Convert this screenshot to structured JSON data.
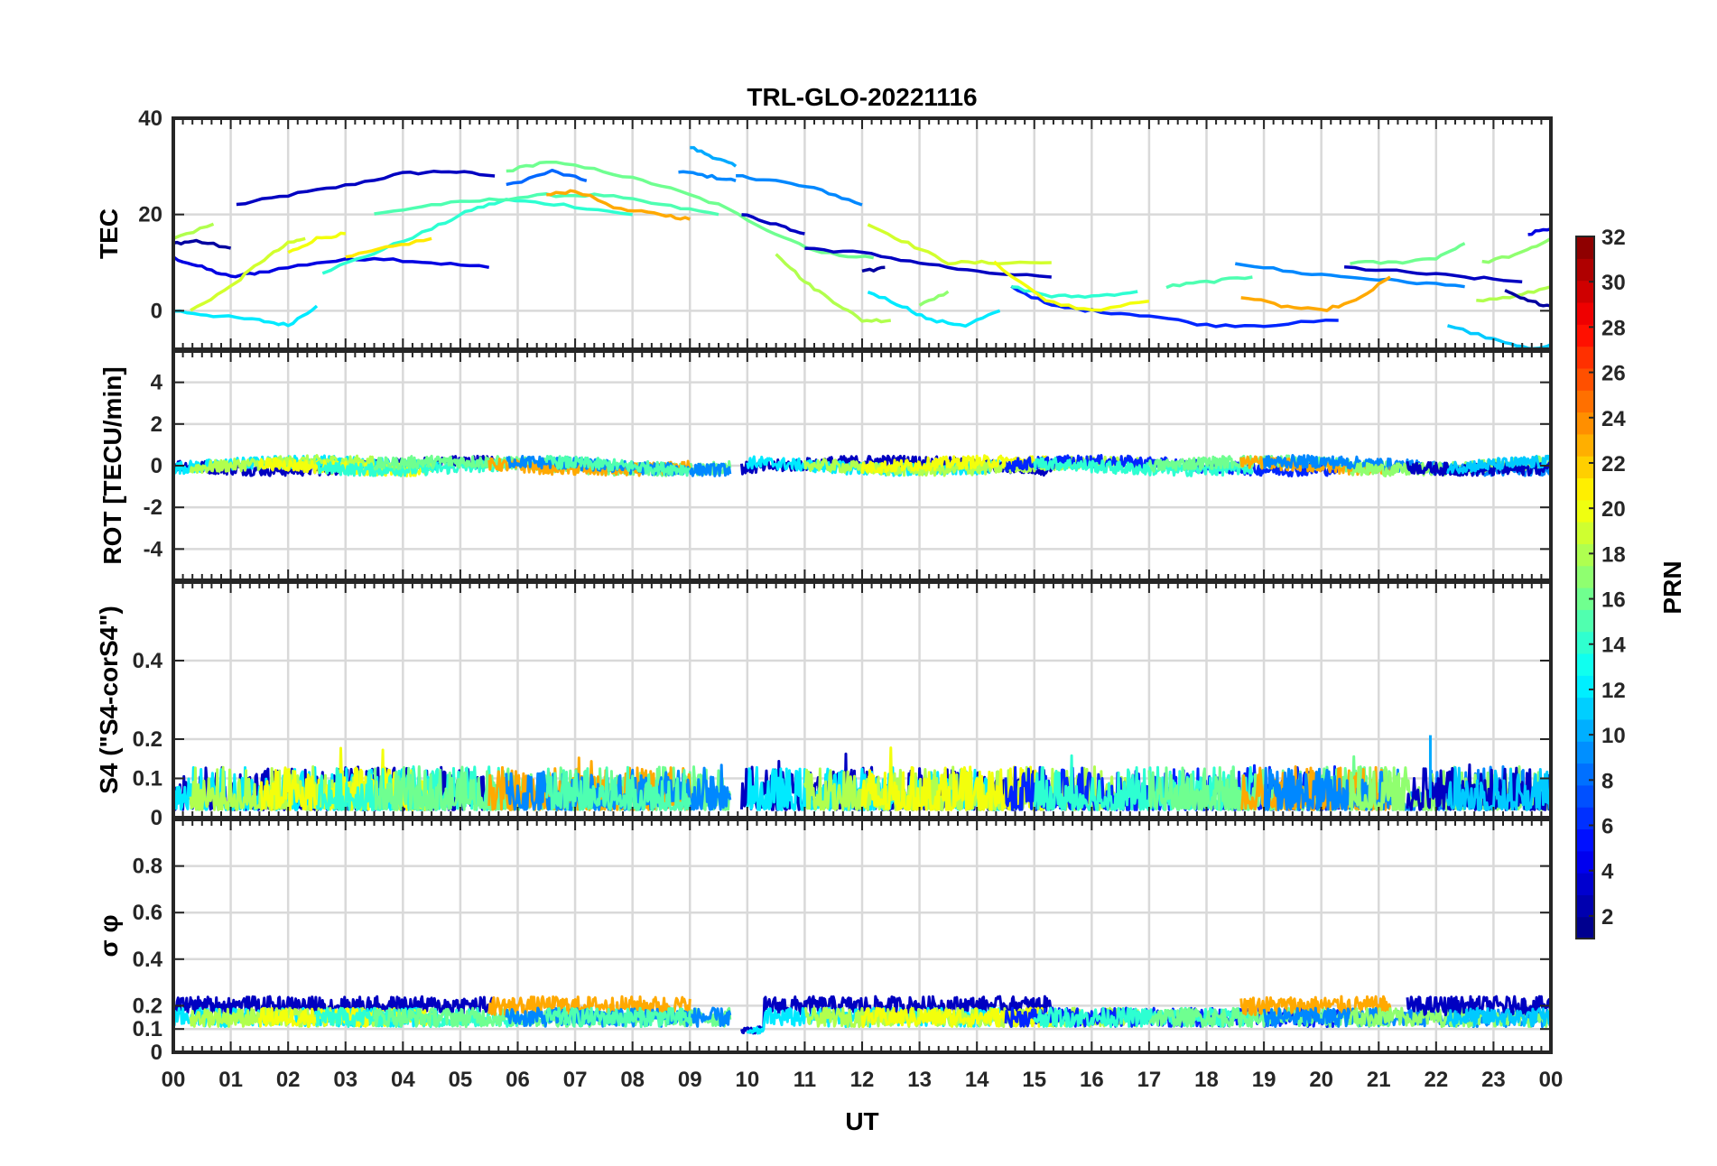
{
  "figure": {
    "title": "TRL-GLO-20221116",
    "xlabel": "UT",
    "colorbar_label": "PRN"
  },
  "chart_data": {
    "type": "line",
    "title": "TRL-GLO-20221116",
    "xlabel": "UT",
    "x_unit": "hours UT",
    "xlim": [
      0,
      24
    ],
    "x_ticks": [
      0,
      1,
      2,
      3,
      4,
      5,
      6,
      7,
      8,
      9,
      10,
      11,
      12,
      13,
      14,
      15,
      16,
      17,
      18,
      19,
      20,
      21,
      22,
      23,
      24
    ],
    "x_tick_labels": [
      "00",
      "01",
      "02",
      "03",
      "04",
      "05",
      "06",
      "07",
      "08",
      "09",
      "10",
      "11",
      "12",
      "13",
      "14",
      "15",
      "16",
      "17",
      "18",
      "19",
      "20",
      "21",
      "22",
      "23",
      "00"
    ],
    "panels": [
      {
        "name": "tec",
        "ylabel": "TEC",
        "ylim": [
          -8,
          40
        ],
        "y_ticks": [
          0,
          20,
          40
        ],
        "y_tick_labels": [
          "0",
          "20",
          "40"
        ],
        "series": [
          {
            "prn": 3,
            "x": [
              1.1,
              2.0,
              3.0,
              4.0,
              4.8,
              5.6
            ],
            "y": [
              22,
              24,
              26,
              28.5,
              29,
              28
            ]
          },
          {
            "prn": 4,
            "x": [
              0.0,
              0.5,
              1.0,
              1.5,
              2.5,
              3.5,
              4.5,
              5.5
            ],
            "y": [
              11,
              9,
              7,
              8,
              10,
              11,
              10,
              9
            ]
          },
          {
            "prn": 2,
            "x": [
              0.0,
              0.4,
              1.0
            ],
            "y": [
              14,
              14.5,
              13
            ]
          },
          {
            "prn": 8,
            "x": [
              5.8,
              6.6,
              7.2
            ],
            "y": [
              26,
              29,
              27
            ]
          },
          {
            "prn": 9,
            "x": [
              8.8,
              9.3,
              9.8
            ],
            "y": [
              29,
              28,
              27
            ]
          },
          {
            "prn": 10,
            "x": [
              9.0,
              9.4,
              9.8
            ],
            "y": [
              34,
              32,
              30
            ]
          },
          {
            "prn": 9,
            "x": [
              9.8,
              10.5,
              11.3,
              12.0
            ],
            "y": [
              28,
              27,
              25,
              22
            ]
          },
          {
            "prn": 12,
            "x": [
              0.0,
              0.7,
              1.5,
              2.0,
              2.5
            ],
            "y": [
              0,
              -1,
              -2,
              -3,
              1
            ]
          },
          {
            "prn": 14,
            "x": [
              2.6,
              3.5,
              4.5,
              5.2,
              5.8,
              6.8,
              8.0
            ],
            "y": [
              8,
              12,
              17,
              21,
              23,
              22,
              20
            ]
          },
          {
            "prn": 15,
            "x": [
              3.5,
              4.5,
              5.5,
              6.5,
              7.5,
              8.5,
              9.5
            ],
            "y": [
              20,
              22,
              23,
              24,
              24,
              22,
              20
            ]
          },
          {
            "prn": 16,
            "x": [
              5.8,
              6.5,
              7.5,
              8.5,
              9.5,
              10.5,
              11.3,
              12.2
            ],
            "y": [
              29,
              31,
              29,
              26,
              22,
              16,
              12,
              11
            ]
          },
          {
            "prn": 18,
            "x": [
              0.0,
              0.7
            ],
            "y": [
              15,
              18
            ]
          },
          {
            "prn": 19,
            "x": [
              0.3,
              1.0,
              1.5,
              2.0,
              2.3
            ],
            "y": [
              0,
              5,
              10,
              14,
              15
            ]
          },
          {
            "prn": 20,
            "x": [
              2.0,
              2.5,
              3.0
            ],
            "y": [
              12,
              15,
              16
            ]
          },
          {
            "prn": 21,
            "x": [
              3.0,
              3.7,
              4.5
            ],
            "y": [
              11,
              13,
              15
            ]
          },
          {
            "prn": 23,
            "x": [
              6.5,
              7.0,
              7.8,
              8.5,
              9.0
            ],
            "y": [
              24,
              25,
              21,
              20,
              19
            ]
          },
          {
            "prn": 3,
            "x": [
              9.9,
              10.5,
              11.0
            ],
            "y": [
              20,
              18,
              16
            ]
          },
          {
            "prn": 18,
            "x": [
              10.5,
              11.0,
              11.5,
              12.0,
              12.5
            ],
            "y": [
              12,
              6,
              2,
              -2,
              -2
            ]
          },
          {
            "prn": 19,
            "x": [
              12.1,
              12.8,
              13.5,
              14.2,
              15.3
            ],
            "y": [
              18,
              14,
              10,
              10,
              10
            ]
          },
          {
            "prn": 3,
            "x": [
              11.0,
              12.0,
              13.0,
              14.0,
              15.3
            ],
            "y": [
              13,
              12,
              10,
              8,
              7
            ]
          },
          {
            "prn": 2,
            "x": [
              12.0,
              12.4
            ],
            "y": [
              8,
              9
            ]
          },
          {
            "prn": 12,
            "x": [
              12.1,
              12.7,
              13.2,
              13.8,
              14.4
            ],
            "y": [
              4,
              1,
              -2,
              -3,
              0
            ]
          },
          {
            "prn": 17,
            "x": [
              13.0,
              13.5
            ],
            "y": [
              1,
              4
            ]
          },
          {
            "prn": 6,
            "x": [
              14.6,
              15.3,
              16.0,
              17.0,
              18.0,
              19.0,
              20.3
            ],
            "y": [
              5,
              1,
              0,
              -1,
              -3,
              -3,
              -2
            ]
          },
          {
            "prn": 14,
            "x": [
              14.6,
              15.3,
              16.0,
              16.8
            ],
            "y": [
              5,
              3,
              3,
              4
            ]
          },
          {
            "prn": 20,
            "x": [
              14.3,
              15.2,
              16.0,
              17.0
            ],
            "y": [
              10,
              2,
              0,
              2
            ]
          },
          {
            "prn": 15,
            "x": [
              17.3,
              18.0,
              18.8
            ],
            "y": [
              5,
              6,
              7
            ]
          },
          {
            "prn": 9,
            "x": [
              18.5,
              19.5,
              20.5,
              21.5,
              22.5
            ],
            "y": [
              10,
              8,
              7,
              6,
              5
            ]
          },
          {
            "prn": 23,
            "x": [
              18.6,
              19.3,
              20.0,
              20.6,
              21.2
            ],
            "y": [
              3,
              1,
              0,
              2,
              7
            ]
          },
          {
            "prn": 3,
            "x": [
              20.4,
              21.5,
              22.5,
              23.5
            ],
            "y": [
              9,
              8,
              7,
              6
            ]
          },
          {
            "prn": 16,
            "x": [
              20.5,
              21.3,
              22.0,
              22.5
            ],
            "y": [
              10,
              10,
              11,
              14
            ]
          },
          {
            "prn": 17,
            "x": [
              22.8,
              23.5,
              24.0
            ],
            "y": [
              10,
              12,
              15
            ]
          },
          {
            "prn": 11,
            "x": [
              22.2,
              23.0,
              23.6,
              24.0
            ],
            "y": [
              -3,
              -6,
              -8,
              -7
            ]
          },
          {
            "prn": 18,
            "x": [
              22.7,
              23.4,
              24.0
            ],
            "y": [
              2,
              3,
              5
            ]
          },
          {
            "prn": 4,
            "x": [
              23.6,
              24.0
            ],
            "y": [
              16,
              17
            ]
          },
          {
            "prn": 2,
            "x": [
              23.2,
              23.6,
              24.0
            ],
            "y": [
              4,
              2,
              1
            ]
          }
        ]
      },
      {
        "name": "rot",
        "ylabel": "ROT [TECU/min]",
        "ylim": [
          -5.5,
          5.5
        ],
        "y_ticks": [
          -4,
          -2,
          0,
          2,
          4
        ],
        "y_tick_labels": [
          "-4",
          "-2",
          "0",
          "2",
          "4"
        ],
        "description": "All PRNs fluctuate near 0 TECU/min across the whole day (|ROT| < ~1).",
        "typical_range": [
          -0.8,
          0.8
        ]
      },
      {
        "name": "s4",
        "ylabel": "S4 (\"S4-corS4\")",
        "ylim": [
          0,
          0.6
        ],
        "y_ticks": [
          0,
          0.1,
          0.2,
          0.4
        ],
        "y_tick_labels": [
          "0",
          "0.1",
          "0.2",
          "0.4"
        ],
        "typical_range": [
          0.0,
          0.15
        ],
        "peak_value": 0.21,
        "peak_time_ut": 21.9
      },
      {
        "name": "sigma_phi",
        "ylabel": "σ φ",
        "ylim": [
          0,
          1.0
        ],
        "y_ticks": [
          0,
          0.1,
          0.2,
          0.4,
          0.6,
          0.8
        ],
        "y_tick_labels": [
          "0",
          "0.1",
          "0.2",
          "0.4",
          "0.6",
          "0.8"
        ],
        "typical_range": [
          0.1,
          0.28
        ],
        "dip_value": 0.07,
        "dip_time_ut": 9.9
      }
    ],
    "colorbar": {
      "label": "PRN",
      "range": [
        1,
        32
      ],
      "colormap": "jet",
      "ticks": [
        2,
        4,
        6,
        8,
        10,
        12,
        14,
        16,
        18,
        20,
        22,
        24,
        26,
        28,
        30,
        32
      ],
      "tick_labels": [
        "2",
        "4",
        "6",
        "8",
        "10",
        "12",
        "14",
        "16",
        "18",
        "20",
        "22",
        "24",
        "26",
        "28",
        "30",
        "32"
      ]
    }
  }
}
